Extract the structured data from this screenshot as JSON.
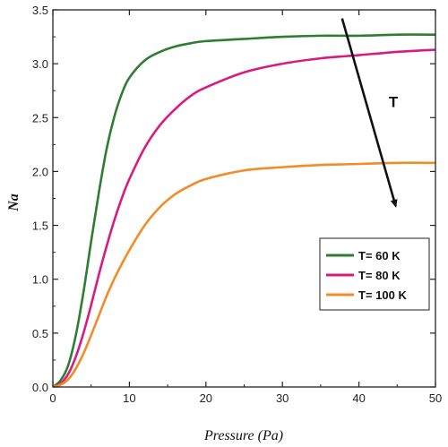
{
  "chart_data": {
    "type": "line",
    "xlabel": "Pressure (Pa)",
    "ylabel": "Na",
    "xlim": [
      0,
      50
    ],
    "ylim": [
      0,
      3.5
    ],
    "xticks": [
      0,
      10,
      20,
      30,
      40,
      50
    ],
    "yticks": [
      0.0,
      0.5,
      1.0,
      1.5,
      2.0,
      2.5,
      3.0,
      3.5
    ],
    "xtick_labels": [
      "0",
      "10",
      "20",
      "30",
      "40",
      "50"
    ],
    "ytick_labels": [
      "0.0",
      "0.5",
      "1.0",
      "1.5",
      "2.0",
      "2.5",
      "3.0",
      "3.5"
    ],
    "grid": false,
    "legend_position": "lower-right",
    "series": [
      {
        "name": "T= 60 K",
        "color": "#2e7d32",
        "x": [
          0,
          1,
          2,
          3,
          4,
          5,
          6,
          7,
          8,
          9,
          10,
          12,
          14,
          16,
          18,
          20,
          25,
          30,
          35,
          40,
          45,
          50
        ],
        "y": [
          0,
          0.06,
          0.2,
          0.48,
          0.88,
          1.35,
          1.8,
          2.2,
          2.5,
          2.72,
          2.87,
          3.03,
          3.11,
          3.16,
          3.19,
          3.21,
          3.23,
          3.25,
          3.26,
          3.26,
          3.27,
          3.27
        ]
      },
      {
        "name": "T= 80 K",
        "color": "#d81b7f",
        "x": [
          0,
          1,
          2,
          3,
          4,
          5,
          6,
          7,
          8,
          9,
          10,
          12,
          14,
          16,
          18,
          20,
          25,
          30,
          35,
          40,
          45,
          50
        ],
        "y": [
          0,
          0.03,
          0.12,
          0.28,
          0.5,
          0.76,
          1.04,
          1.3,
          1.54,
          1.75,
          1.93,
          2.22,
          2.43,
          2.58,
          2.7,
          2.78,
          2.92,
          3.0,
          3.05,
          3.08,
          3.11,
          3.13
        ]
      },
      {
        "name": "T= 100 K",
        "color": "#f28c28",
        "x": [
          0,
          1,
          2,
          3,
          4,
          5,
          6,
          7,
          8,
          9,
          10,
          12,
          14,
          16,
          18,
          20,
          25,
          30,
          35,
          40,
          45,
          50
        ],
        "y": [
          0,
          0.02,
          0.07,
          0.17,
          0.31,
          0.48,
          0.66,
          0.84,
          1.0,
          1.14,
          1.27,
          1.5,
          1.67,
          1.79,
          1.87,
          1.93,
          2.01,
          2.04,
          2.06,
          2.07,
          2.08,
          2.08
        ]
      }
    ],
    "annotation": {
      "label": "T",
      "arrow_from": [
        37.8,
        3.42
      ],
      "arrow_to": [
        44.8,
        1.68
      ],
      "label_at": [
        44.5,
        2.6
      ]
    }
  }
}
